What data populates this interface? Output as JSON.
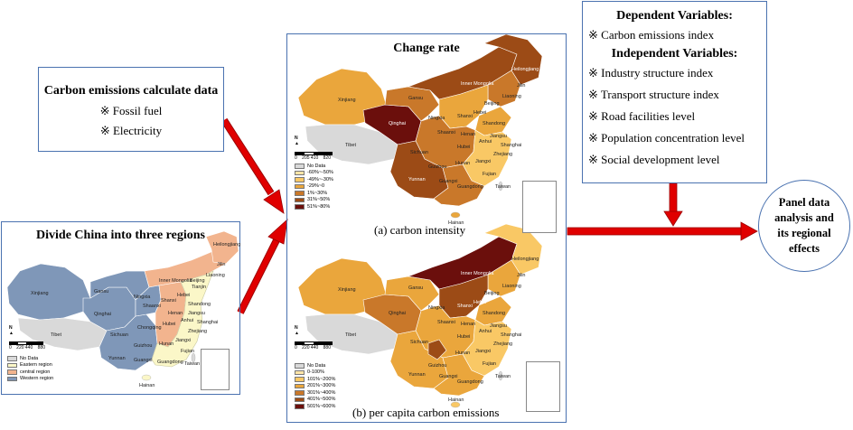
{
  "box_carbon_data": {
    "title": "Carbon emissions calculate data",
    "items": [
      "※ Fossil fuel",
      "※ Electricity"
    ]
  },
  "box_regions": {
    "title": "Divide China into three regions",
    "scale": [
      "0",
      "220 440",
      "880"
    ],
    "legend": [
      {
        "label": "No Data",
        "color": "#d9d9d9"
      },
      {
        "label": "Eastern region",
        "color": "#fbf7c8"
      },
      {
        "label": "central region",
        "color": "#f2b48e"
      },
      {
        "label": "Western region",
        "color": "#7f97b8"
      }
    ],
    "labels": [
      "Xinjiang",
      "Tibet",
      "Qinghai",
      "Gansu",
      "Inner Mongolia",
      "Heilongjiang",
      "Jilin",
      "Liaoning",
      "Beijing",
      "Tianjin",
      "Hebei",
      "Shanxi",
      "Shandong",
      "Henan",
      "Shaanxi",
      "Ningxia",
      "Sichuan",
      "Chongqing",
      "Hubei",
      "Anhui",
      "Jiangsu",
      "Shanghai",
      "Zhejiang",
      "Hunan",
      "Jiangxi",
      "Fujian",
      "Guizhou",
      "Yunnan",
      "Guangxi",
      "Guangdong",
      "Taiwan",
      "Hainan"
    ]
  },
  "center_panel": {
    "title": "Change rate",
    "map_a": {
      "caption": "(a) carbon intensity",
      "scale": [
        "0",
        "205 410",
        "820"
      ],
      "legend": [
        {
          "label": "No Data",
          "color": "#d9d9d9"
        },
        {
          "label": "-60%~-50%",
          "color": "#fde4a6"
        },
        {
          "label": "-49%~-30%",
          "color": "#f9c865"
        },
        {
          "label": "-29%~0",
          "color": "#eaa63c"
        },
        {
          "label": "1%~30%",
          "color": "#c9782a"
        },
        {
          "label": "31%~50%",
          "color": "#9c4b16"
        },
        {
          "label": "51%~80%",
          "color": "#6b0f0c"
        }
      ],
      "labels": [
        "Xinjiang",
        "Tibet",
        "Qinghai",
        "Gansu",
        "Inner Mongolia",
        "Heilongjiang",
        "Jilin",
        "Liaoning",
        "Beijing",
        "Hebei",
        "Shanxi",
        "Shandong",
        "Henan",
        "Shaanxi",
        "Ningxia",
        "Sichuan",
        "Hubei",
        "Anhui",
        "Jiangsu",
        "Shanghai",
        "Zhejiang",
        "Hunan",
        "Jiangxi",
        "Fujian",
        "Guizhou",
        "Yunnan",
        "Guangxi",
        "Guangdong",
        "Taiwan",
        "Hainan"
      ]
    },
    "map_b": {
      "caption": "(b) per capita carbon emissions",
      "scale": [
        "0",
        "220 440",
        "880"
      ],
      "legend": [
        {
          "label": "No Data",
          "color": "#d9d9d9"
        },
        {
          "label": "0-100%",
          "color": "#fde4a6"
        },
        {
          "label": "101%~200%",
          "color": "#f9c865"
        },
        {
          "label": "201%~300%",
          "color": "#eaa63c"
        },
        {
          "label": "301%~400%",
          "color": "#c9782a"
        },
        {
          "label": "401%~500%",
          "color": "#9c4b16"
        },
        {
          "label": "501%~600%",
          "color": "#6b0f0c"
        }
      ],
      "labels": [
        "Xinjiang",
        "Tibet",
        "Qinghai",
        "Gansu",
        "Inner Mongolia",
        "Heilongjiang",
        "Jilin",
        "Liaoning",
        "Beijing",
        "Hebei",
        "Shanxi",
        "Shandong",
        "Henan",
        "Shaanxi",
        "Ningxia",
        "Sichuan",
        "Hubei",
        "Anhui",
        "Jiangsu",
        "Shanghai",
        "Zhejiang",
        "Hunan",
        "Jiangxi",
        "Fujian",
        "Guizhou",
        "Yunnan",
        "Guangxi",
        "Guangdong",
        "Taiwan",
        "Hainan"
      ]
    }
  },
  "box_variables": {
    "dependent_title": "Dependent Variables:",
    "dependent_items": [
      "※ Carbon emissions index"
    ],
    "independent_title": "Independent Variables:",
    "independent_items": [
      "※ Industry structure index",
      "※ Transport structure index",
      "※ Road facilities level",
      "※ Population concentration level",
      "※ Social development level"
    ]
  },
  "circle_result": {
    "lines": [
      "Panel data",
      "analysis and",
      "its regional",
      "effects"
    ]
  },
  "colors": {
    "box_border": "#4a72b0",
    "arrow": "#e00000",
    "arrow_outline": "#9a0000"
  }
}
